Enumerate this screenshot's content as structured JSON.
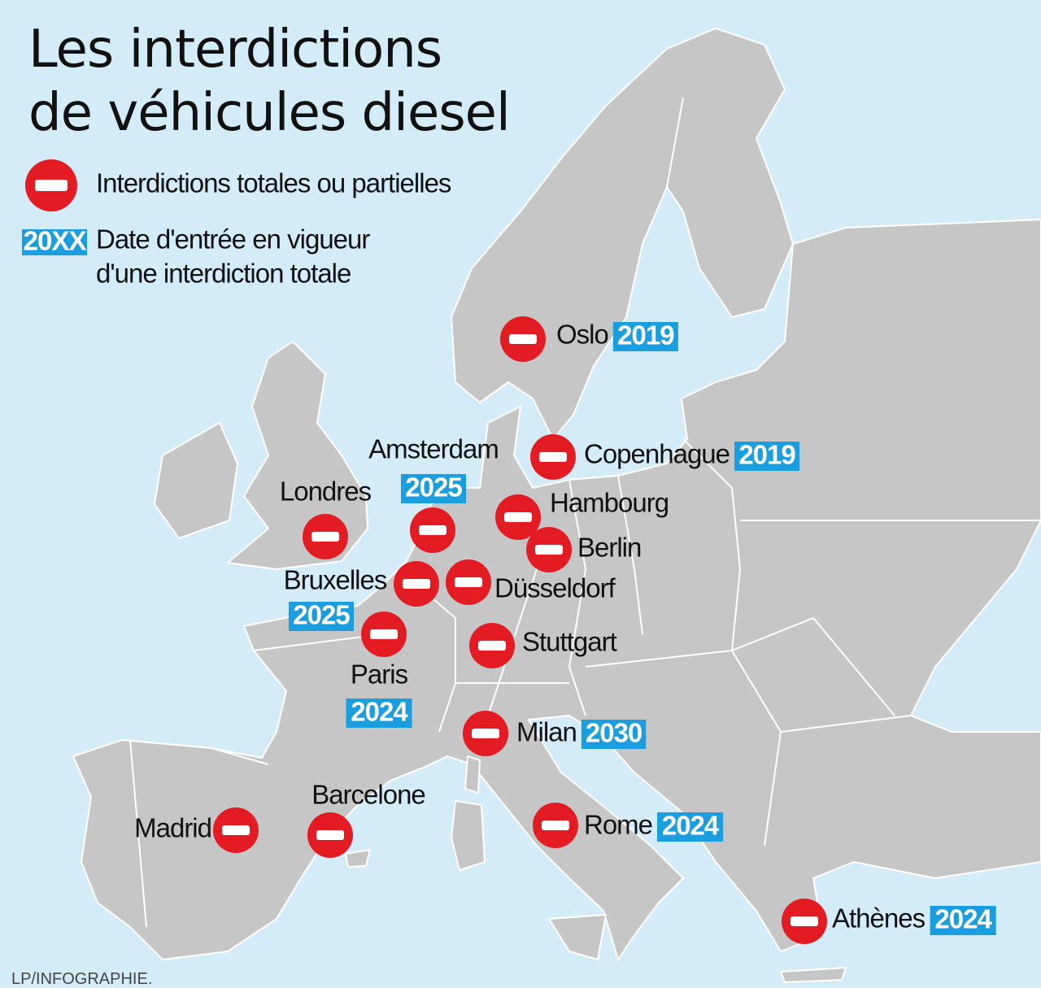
{
  "header": {
    "title": [
      "Les interdictions",
      "de véhicules diesel"
    ]
  },
  "legend": {
    "ban": "Interdictions totales ou partielles",
    "year_key": "20XX",
    "year_desc": [
      "Date d'entrée en vigueur",
      "d'une interdiction totale"
    ]
  },
  "cities": [
    {
      "name": "Oslo",
      "year": "2019"
    },
    {
      "name": "Copenhague",
      "year": "2019"
    },
    {
      "name": "Amsterdam",
      "year": "2025"
    },
    {
      "name": "Londres"
    },
    {
      "name": "Hambourg"
    },
    {
      "name": "Berlin"
    },
    {
      "name": "Bruxelles",
      "year": "2025"
    },
    {
      "name": "Düsseldorf"
    },
    {
      "name": "Paris",
      "year": "2024"
    },
    {
      "name": "Stuttgart"
    },
    {
      "name": "Milan",
      "year": "2030"
    },
    {
      "name": "Rome",
      "year": "2024"
    },
    {
      "name": "Madrid"
    },
    {
      "name": "Barcelone"
    },
    {
      "name": "Athènes",
      "year": "2024"
    }
  ],
  "credit": "LP/INFOGRAPHIE."
}
